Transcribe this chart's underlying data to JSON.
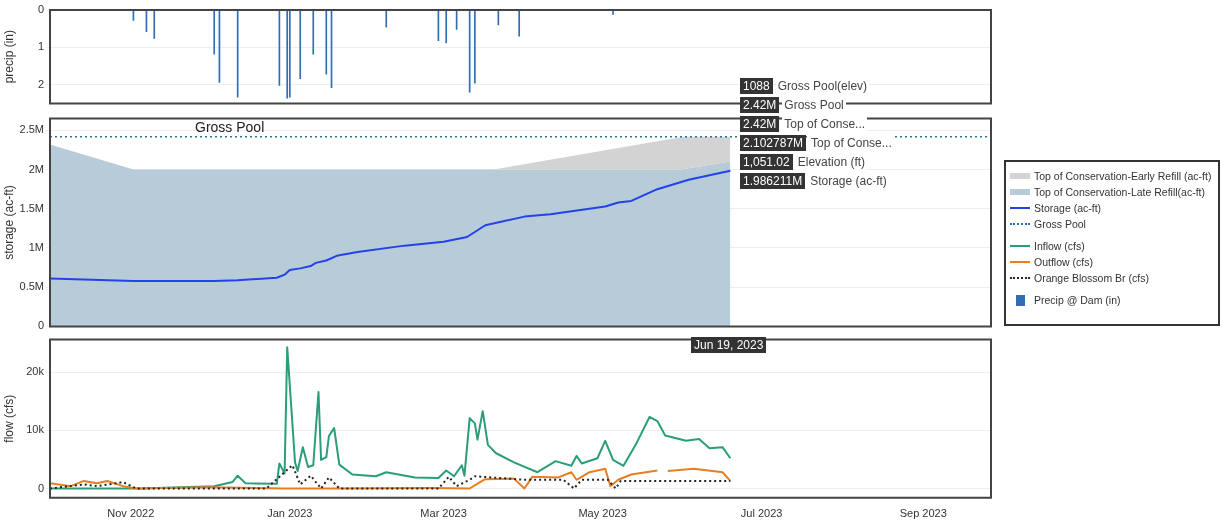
{
  "chart_data": [
    {
      "type": "bar",
      "ylabel": "precip (in)",
      "xlim": [
        "2022-10-01",
        "2023-09-27"
      ],
      "ylim": [
        2.5,
        0
      ],
      "yticks": [
        0,
        1,
        2
      ],
      "grid": "y",
      "legend": "right",
      "tick_labels": "y",
      "series": [
        {
          "name": "Precip @ Dam (in)",
          "color": "#2f6db5",
          "x": [
            "2022-11-02",
            "2022-11-07",
            "2022-11-10",
            "2022-12-03",
            "2022-12-05",
            "2022-12-12",
            "2022-12-28",
            "2022-12-31",
            "2023-01-01",
            "2023-01-05",
            "2023-01-10",
            "2023-01-15",
            "2023-01-17",
            "2023-02-07",
            "2023-02-27",
            "2023-03-02",
            "2023-03-06",
            "2023-03-11",
            "2023-03-13",
            "2023-03-22",
            "2023-03-30",
            "2023-05-05"
          ],
          "values": [
            0.28,
            0.58,
            0.76,
            1.18,
            1.94,
            2.33,
            2.02,
            2.36,
            2.33,
            1.84,
            1.18,
            1.72,
            2.08,
            0.46,
            0.82,
            0.88,
            0.52,
            2.2,
            1.96,
            0.4,
            0.7,
            0.12
          ]
        }
      ]
    },
    {
      "type": "area",
      "ylabel": "storage (ac-ft)",
      "xlim": [
        "2022-10-01",
        "2023-09-27"
      ],
      "ylim": [
        0,
        2650000
      ],
      "yticks": [
        0,
        {
          "value": 500000,
          "label": "0.5M"
        },
        {
          "value": 1000000,
          "label": "1M"
        },
        {
          "value": 1500000,
          "label": "1.5M"
        },
        {
          "value": 2000000,
          "label": "2M"
        },
        {
          "value": 2500000,
          "label": "2.5M"
        }
      ],
      "grid": "y",
      "legend": "right",
      "tick_labels": "y",
      "marker": "none",
      "ref_lines": [
        {
          "axis": "y",
          "value": 2420000,
          "label": "Gross Pool",
          "color": "#2a6fa8",
          "line_style": "dotted"
        }
      ],
      "annotations": [
        "1088 Gross Pool(elev)",
        "2.42M Gross Pool",
        "2.42M Top of Conse...",
        "2.102787M Top of Conse...",
        "1,051.02 Elevation (ft)",
        "1.986211M Storage (ac-ft)"
      ],
      "series": [
        {
          "name": "Top of Conservation-Early Refill (ac-ft)",
          "type": "area",
          "color": "#d3d3d3",
          "x": [
            "2022-10-01",
            "2022-11-02",
            "2023-03-20",
            "2023-06-01",
            "2023-06-19"
          ],
          "values": [
            2320000,
            2000000,
            2000000,
            2420000,
            2420000
          ]
        },
        {
          "name": "Top of Conservation-Late Refill(ac-ft)",
          "type": "area",
          "color": "#b7cbd9",
          "x": [
            "2022-10-01",
            "2022-11-02",
            "2023-05-31",
            "2023-06-19"
          ],
          "values": [
            2320000,
            2000000,
            2000000,
            2102787
          ]
        },
        {
          "name": "Storage (ac-ft)",
          "type": "line",
          "color": "#2343e8",
          "x": [
            "2022-10-01",
            "2022-11-02",
            "2022-12-03",
            "2022-12-12",
            "2022-12-27",
            "2022-12-30",
            "2023-01-01",
            "2023-01-05",
            "2023-01-09",
            "2023-01-11",
            "2023-01-15",
            "2023-01-19",
            "2023-01-27",
            "2023-02-14",
            "2023-03-01",
            "2023-03-10",
            "2023-03-17",
            "2023-04-01",
            "2023-04-11",
            "2023-05-02",
            "2023-05-07",
            "2023-05-12",
            "2023-05-22",
            "2023-06-03",
            "2023-06-19"
          ],
          "values": [
            610000,
            580000,
            580000,
            590000,
            620000,
            660000,
            720000,
            740000,
            770000,
            810000,
            840000,
            900000,
            950000,
            1030000,
            1080000,
            1140000,
            1290000,
            1400000,
            1430000,
            1530000,
            1580000,
            1600000,
            1750000,
            1870000,
            1986211
          ]
        }
      ]
    },
    {
      "type": "line",
      "ylabel": "flow (cfs)",
      "xlim": [
        "2022-10-01",
        "2023-09-27"
      ],
      "ylim": [
        -1600,
        25600
      ],
      "yticks": [
        0,
        {
          "value": 10000,
          "label": "10k"
        },
        {
          "value": 20000,
          "label": "20k"
        }
      ],
      "xticks": [
        {
          "value": "2022-11-01",
          "label": "Nov 2022"
        },
        {
          "value": "2023-01-01",
          "label": "Jan 2023"
        },
        {
          "value": "2023-03-01",
          "label": "Mar 2023"
        },
        {
          "value": "2023-05-01",
          "label": "May 2023"
        },
        {
          "value": "2023-07-01",
          "label": "Jul 2023"
        },
        {
          "value": "2023-09-01",
          "label": "Sep 2023"
        }
      ],
      "grid": "y",
      "legend": "right",
      "marker": "none",
      "annotations": [
        "Jun 19, 2023"
      ],
      "series": [
        {
          "name": "Inflow (cfs)",
          "color": "#2a9d7a",
          "x": [
            "2022-10-01",
            "2022-11-05",
            "2022-12-03",
            "2022-12-10",
            "2022-12-12",
            "2022-12-15",
            "2022-12-27",
            "2022-12-28",
            "2022-12-30",
            "2022-12-31",
            "2023-01-03",
            "2023-01-04",
            "2023-01-06",
            "2023-01-08",
            "2023-01-10",
            "2023-01-12",
            "2023-01-13",
            "2023-01-15",
            "2023-01-16",
            "2023-01-18",
            "2023-01-20",
            "2023-01-25",
            "2023-02-03",
            "2023-02-07",
            "2023-02-18",
            "2023-02-27",
            "2023-03-02",
            "2023-03-05",
            "2023-03-08",
            "2023-03-09",
            "2023-03-11",
            "2023-03-13",
            "2023-03-14",
            "2023-03-16",
            "2023-03-18",
            "2023-03-21",
            "2023-03-28",
            "2023-04-06",
            "2023-04-13",
            "2023-04-19",
            "2023-04-21",
            "2023-04-23",
            "2023-04-29",
            "2023-05-02",
            "2023-05-05",
            "2023-05-09",
            "2023-05-14",
            "2023-05-19",
            "2023-05-22",
            "2023-05-25",
            "2023-06-02",
            "2023-06-07",
            "2023-06-11",
            "2023-06-16",
            "2023-06-19"
          ],
          "values": [
            0,
            0,
            400,
            1100,
            2200,
            900,
            800,
            4300,
            2600,
            24300,
            4500,
            3000,
            7100,
            3700,
            4000,
            16600,
            4900,
            5400,
            9000,
            10400,
            4100,
            2400,
            2100,
            2800,
            1900,
            1800,
            3100,
            2100,
            4000,
            2200,
            12100,
            11200,
            8400,
            13300,
            7500,
            6100,
            4500,
            2800,
            4700,
            3900,
            5600,
            4300,
            5200,
            8200,
            4900,
            3900,
            7800,
            12300,
            11600,
            9100,
            8200,
            8500,
            6900,
            7100,
            5200
          ]
        },
        {
          "name": "Outflow (cfs)",
          "color": "#e67e22",
          "x": [
            "2022-10-01",
            "2022-10-09",
            "2022-10-14",
            "2022-10-19",
            "2022-10-23",
            "2022-10-29",
            "2022-11-03",
            "2022-12-01",
            "2022-12-30",
            "2023-01-18",
            "2023-02-24",
            "2023-03-11",
            "2023-03-15",
            "2023-03-17",
            "2023-03-28",
            "2023-04-01",
            "2023-04-04",
            "2023-04-14",
            "2023-04-19",
            "2023-04-21",
            "2023-04-26",
            "2023-05-02",
            "2023-05-04",
            "2023-05-07",
            "2023-05-12",
            "2023-05-22",
            "2023-05-24",
            "2023-05-26",
            "2023-06-05",
            "2023-06-16",
            "2023-06-19"
          ],
          "values": [
            900,
            400,
            1300,
            900,
            1300,
            400,
            0,
            200,
            0,
            0,
            100,
            0,
            1100,
            1600,
            1700,
            0,
            2000,
            1900,
            2800,
            1500,
            2800,
            3400,
            400,
            1500,
            2400,
            3100,
            null,
            3000,
            3400,
            2800,
            1300
          ]
        },
        {
          "name": "Orange Blossom Br (cfs)",
          "color": "#222222",
          "line_style": "dotted",
          "x": [
            "2022-10-01",
            "2022-10-14",
            "2022-10-19",
            "2022-10-29",
            "2022-11-03",
            "2022-12-23",
            "2023-01-02",
            "2023-01-05",
            "2023-01-09",
            "2023-01-13",
            "2023-01-16",
            "2023-01-20",
            "2023-02-27",
            "2023-03-03",
            "2023-03-06",
            "2023-03-11",
            "2023-03-13",
            "2023-04-01",
            "2023-04-16",
            "2023-04-20",
            "2023-04-23",
            "2023-05-03",
            "2023-05-06",
            "2023-05-08",
            "2023-06-19"
          ],
          "values": [
            0,
            700,
            400,
            1100,
            0,
            0,
            4000,
            700,
            2200,
            0,
            1900,
            0,
            0,
            2000,
            400,
            1500,
            2100,
            1500,
            1500,
            0,
            1500,
            1500,
            0,
            1300,
            1300
          ]
        }
      ]
    }
  ]
}
